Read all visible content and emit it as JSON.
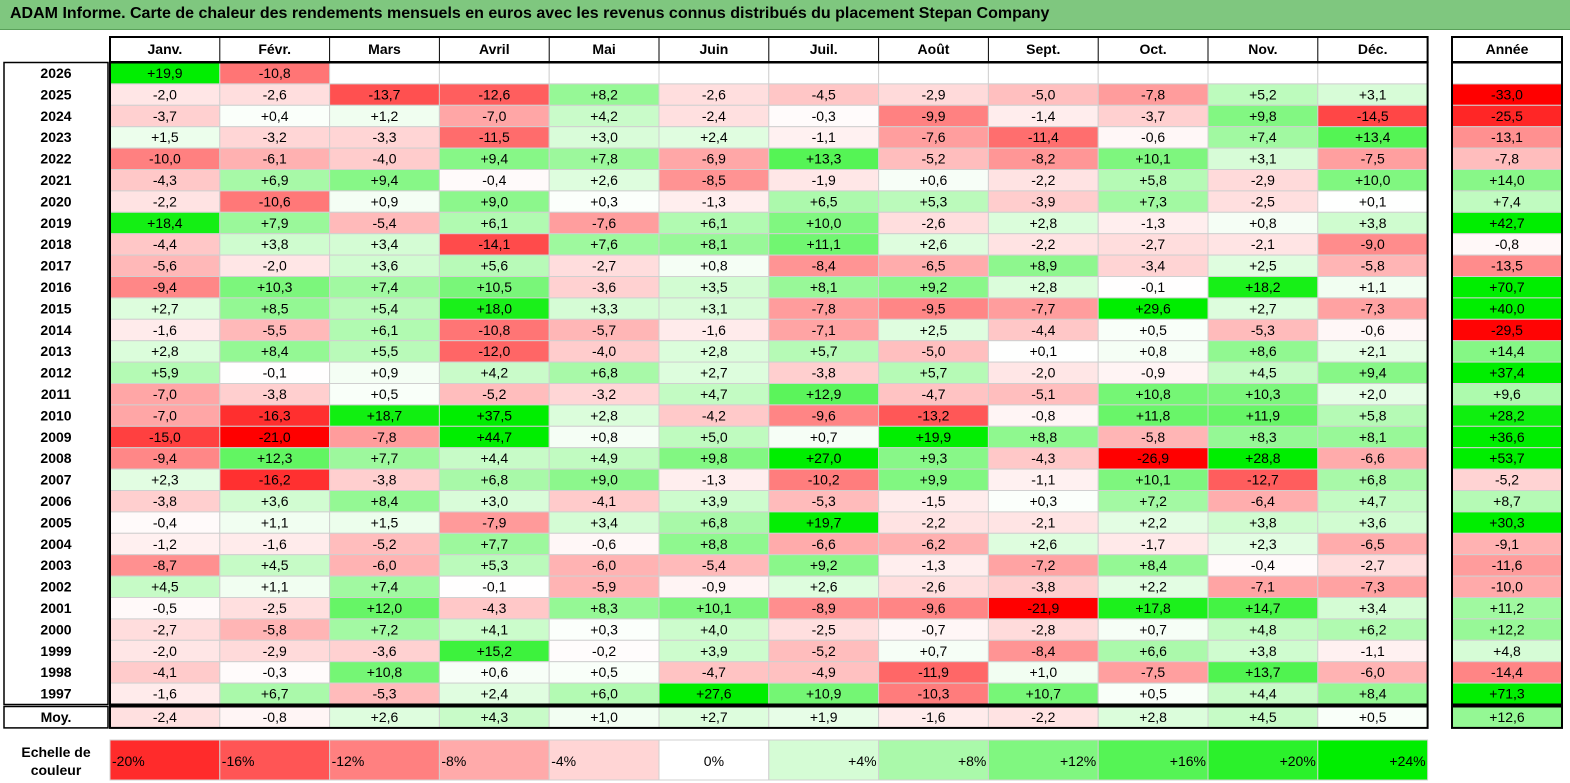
{
  "header": {
    "title": "ADAM Informe. Carte de chaleur des rendements mensuels en euros avec les revenus connus distribués du placement Stepan Company"
  },
  "colors": {
    "title_bg": "#7fc77f",
    "neg_max": "#ff0000",
    "pos_max": "#00ee00",
    "neutral": "#ffffff"
  },
  "chart_data": {
    "type": "heatmap",
    "title": "ADAM Informe. Carte de chaleur des rendements mensuels en euros avec les revenus connus distribués du placement Stepan Company",
    "months": [
      "Janv.",
      "Févr.",
      "Mars",
      "Avril",
      "Mai",
      "Juin",
      "Juil.",
      "Août",
      "Sept.",
      "Oct.",
      "Nov.",
      "Déc."
    ],
    "year_header": "Année",
    "rows": [
      {
        "year": "2026",
        "values": [
          "+19,9",
          "-10,8",
          "",
          "",
          "",
          "",
          "",
          "",
          "",
          "",
          "",
          ""
        ],
        "annual": ""
      },
      {
        "year": "2025",
        "values": [
          "-2,0",
          "-2,6",
          "-13,7",
          "-12,6",
          "+8,2",
          "-2,6",
          "-4,5",
          "-2,9",
          "-5,0",
          "-7,8",
          "+5,2",
          "+3,1"
        ],
        "annual": "-33,0"
      },
      {
        "year": "2024",
        "values": [
          "-3,7",
          "+0,4",
          "+1,2",
          "-7,0",
          "+4,2",
          "-2,4",
          "-0,3",
          "-9,9",
          "-1,4",
          "-3,7",
          "+9,8",
          "-14,5"
        ],
        "annual": "-25,5"
      },
      {
        "year": "2023",
        "values": [
          "+1,5",
          "-3,2",
          "-3,3",
          "-11,5",
          "+3,0",
          "+2,4",
          "-1,1",
          "-7,6",
          "-11,4",
          "-0,6",
          "+7,4",
          "+13,4"
        ],
        "annual": "-13,1"
      },
      {
        "year": "2022",
        "values": [
          "-10,0",
          "-6,1",
          "-4,0",
          "+9,4",
          "+7,8",
          "-6,9",
          "+13,3",
          "-5,2",
          "-8,2",
          "+10,1",
          "+3,1",
          "-7,5"
        ],
        "annual": "-7,8"
      },
      {
        "year": "2021",
        "values": [
          "-4,3",
          "+6,9",
          "+9,4",
          "-0,4",
          "+2,6",
          "-8,5",
          "-1,9",
          "+0,6",
          "-2,2",
          "+5,8",
          "-2,9",
          "+10,0"
        ],
        "annual": "+14,0"
      },
      {
        "year": "2020",
        "values": [
          "-2,2",
          "-10,6",
          "+0,9",
          "+9,0",
          "+0,3",
          "-1,3",
          "+6,5",
          "+5,3",
          "-3,9",
          "+7,3",
          "-2,5",
          "+0,1"
        ],
        "annual": "+7,4"
      },
      {
        "year": "2019",
        "values": [
          "+18,4",
          "+7,9",
          "-5,4",
          "+6,1",
          "-7,6",
          "+6,1",
          "+10,0",
          "-2,6",
          "+2,8",
          "-1,3",
          "+0,8",
          "+3,8"
        ],
        "annual": "+42,7"
      },
      {
        "year": "2018",
        "values": [
          "-4,4",
          "+3,8",
          "+3,4",
          "-14,1",
          "+7,6",
          "+8,1",
          "+11,1",
          "+2,6",
          "-2,2",
          "-2,7",
          "-2,1",
          "-9,0"
        ],
        "annual": "-0,8"
      },
      {
        "year": "2017",
        "values": [
          "-5,6",
          "-2,0",
          "+3,6",
          "+5,6",
          "-2,7",
          "+0,8",
          "-8,4",
          "-6,5",
          "+8,9",
          "-3,4",
          "+2,5",
          "-5,8"
        ],
        "annual": "-13,5"
      },
      {
        "year": "2016",
        "values": [
          "-9,4",
          "+10,3",
          "+7,4",
          "+10,5",
          "-3,6",
          "+3,5",
          "+8,1",
          "+9,2",
          "+2,8",
          "-0,1",
          "+18,2",
          "+1,1"
        ],
        "annual": "+70,7"
      },
      {
        "year": "2015",
        "values": [
          "+2,7",
          "+8,5",
          "+5,4",
          "+18,0",
          "+3,3",
          "+3,1",
          "-7,8",
          "-9,5",
          "-7,7",
          "+29,6",
          "+2,7",
          "-7,3"
        ],
        "annual": "+40,0"
      },
      {
        "year": "2014",
        "values": [
          "-1,6",
          "-5,5",
          "+6,1",
          "-10,8",
          "-5,7",
          "-1,6",
          "-7,1",
          "+2,5",
          "-4,4",
          "+0,5",
          "-5,3",
          "-0,6"
        ],
        "annual": "-29,5"
      },
      {
        "year": "2013",
        "values": [
          "+2,8",
          "+8,4",
          "+5,5",
          "-12,0",
          "-4,0",
          "+2,8",
          "+5,7",
          "-5,0",
          "+0,1",
          "+0,8",
          "+8,6",
          "+2,1"
        ],
        "annual": "+14,4"
      },
      {
        "year": "2012",
        "values": [
          "+5,9",
          "-0,1",
          "+0,9",
          "+4,2",
          "+6,8",
          "+2,7",
          "-3,8",
          "+5,7",
          "-2,0",
          "-0,9",
          "+4,5",
          "+9,4"
        ],
        "annual": "+37,4"
      },
      {
        "year": "2011",
        "values": [
          "-7,0",
          "-3,8",
          "+0,5",
          "-5,2",
          "-3,2",
          "+4,7",
          "+12,9",
          "-4,7",
          "-5,1",
          "+10,8",
          "+10,3",
          "+2,0"
        ],
        "annual": "+9,6"
      },
      {
        "year": "2010",
        "values": [
          "-7,0",
          "-16,3",
          "+18,7",
          "+37,5",
          "+2,8",
          "-4,2",
          "-9,6",
          "-13,2",
          "-0,8",
          "+11,8",
          "+11,9",
          "+5,8"
        ],
        "annual": "+28,2"
      },
      {
        "year": "2009",
        "values": [
          "-15,0",
          "-21,0",
          "-7,8",
          "+44,7",
          "+0,8",
          "+5,0",
          "+0,7",
          "+19,9",
          "+8,8",
          "-5,8",
          "+8,3",
          "+8,1"
        ],
        "annual": "+36,6"
      },
      {
        "year": "2008",
        "values": [
          "-9,4",
          "+12,3",
          "+7,7",
          "+4,4",
          "+4,9",
          "+9,8",
          "+27,0",
          "+9,3",
          "-4,3",
          "-26,9",
          "+28,8",
          "-6,6"
        ],
        "annual": "+53,7"
      },
      {
        "year": "2007",
        "values": [
          "+2,3",
          "-16,2",
          "-3,8",
          "+6,8",
          "+9,0",
          "-1,3",
          "-10,2",
          "+9,9",
          "-1,1",
          "+10,1",
          "-12,7",
          "+6,8"
        ],
        "annual": "-5,2"
      },
      {
        "year": "2006",
        "values": [
          "-3,8",
          "+3,6",
          "+8,4",
          "+3,0",
          "-4,1",
          "+3,9",
          "-5,3",
          "-1,5",
          "+0,3",
          "+7,2",
          "-6,4",
          "+4,7"
        ],
        "annual": "+8,7"
      },
      {
        "year": "2005",
        "values": [
          "-0,4",
          "+1,1",
          "+1,5",
          "-7,9",
          "+3,4",
          "+6,8",
          "+19,7",
          "-2,2",
          "-2,1",
          "+2,2",
          "+3,8",
          "+3,6"
        ],
        "annual": "+30,3"
      },
      {
        "year": "2004",
        "values": [
          "-1,2",
          "-1,6",
          "-5,2",
          "+7,7",
          "-0,6",
          "+8,8",
          "-6,6",
          "-6,2",
          "+2,6",
          "-1,7",
          "+2,3",
          "-6,5"
        ],
        "annual": "-9,1"
      },
      {
        "year": "2003",
        "values": [
          "-8,7",
          "+4,5",
          "-6,0",
          "+5,3",
          "-6,0",
          "-5,4",
          "+9,2",
          "-1,3",
          "-7,2",
          "+8,4",
          "-0,4",
          "-2,7"
        ],
        "annual": "-11,6"
      },
      {
        "year": "2002",
        "values": [
          "+4,5",
          "+1,1",
          "+7,4",
          "-0,1",
          "-5,9",
          "-0,9",
          "+2,6",
          "-2,6",
          "-3,8",
          "+2,2",
          "-7,1",
          "-7,3"
        ],
        "annual": "-10,0"
      },
      {
        "year": "2001",
        "values": [
          "-0,5",
          "-2,5",
          "+12,0",
          "-4,3",
          "+8,3",
          "+10,1",
          "-8,9",
          "-9,6",
          "-21,9",
          "+17,8",
          "+14,7",
          "+3,4"
        ],
        "annual": "+11,2"
      },
      {
        "year": "2000",
        "values": [
          "-2,7",
          "-5,8",
          "+7,2",
          "+4,1",
          "+0,3",
          "+4,0",
          "-2,5",
          "-0,7",
          "-2,8",
          "+0,7",
          "+4,8",
          "+6,2"
        ],
        "annual": "+12,2"
      },
      {
        "year": "1999",
        "values": [
          "-2,0",
          "-2,9",
          "-3,6",
          "+15,2",
          "-0,2",
          "+3,9",
          "-5,2",
          "+0,7",
          "-8,4",
          "+6,6",
          "+3,8",
          "-1,1"
        ],
        "annual": "+4,8"
      },
      {
        "year": "1998",
        "values": [
          "-4,1",
          "-0,3",
          "+10,8",
          "+0,6",
          "+0,5",
          "-4,7",
          "-4,9",
          "-11,9",
          "+1,0",
          "-7,5",
          "+13,7",
          "-6,0"
        ],
        "annual": "-14,4"
      },
      {
        "year": "1997",
        "values": [
          "-1,6",
          "+6,7",
          "-5,3",
          "+2,4",
          "+6,0",
          "+27,6",
          "+10,9",
          "-10,3",
          "+10,7",
          "+0,5",
          "+4,4",
          "+8,4"
        ],
        "annual": "+71,3"
      }
    ],
    "average": {
      "label": "Moy.",
      "values": [
        "-2,4",
        "-0,8",
        "+2,6",
        "+4,3",
        "+1,0",
        "+2,7",
        "+1,9",
        "-1,6",
        "-2,2",
        "+2,8",
        "+4,5",
        "+0,5"
      ],
      "annual": "+12,6"
    },
    "color_scale": {
      "label_line1": "Echelle de",
      "label_line2": "couleur",
      "steps": [
        "-20%",
        "-16%",
        "-12%",
        "-8%",
        "-4%",
        "0%",
        "+4%",
        "+8%",
        "+12%",
        "+16%",
        "+20%",
        "+24%"
      ]
    }
  }
}
